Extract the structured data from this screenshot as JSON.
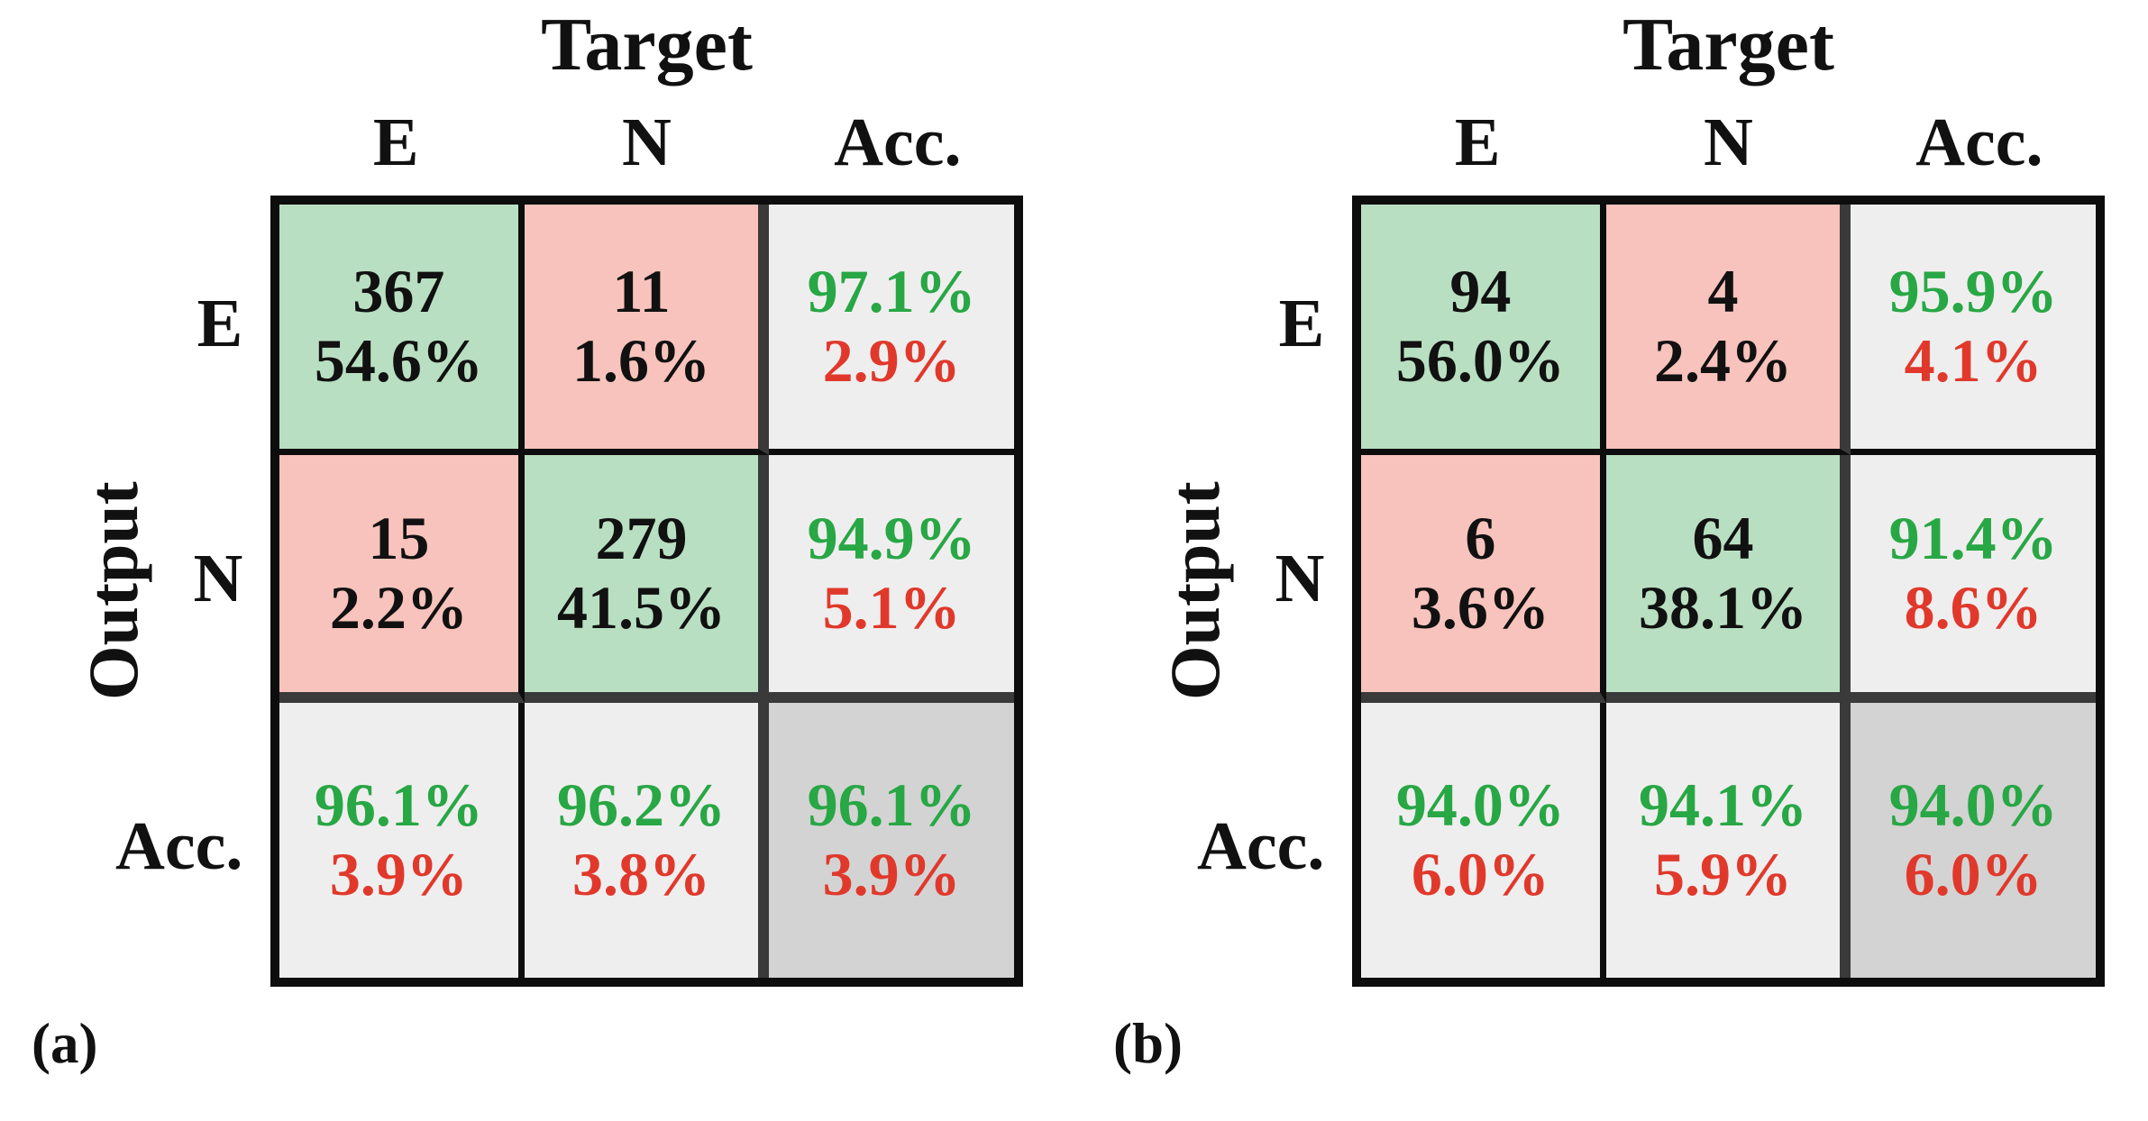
{
  "figure_type": "confusion-matrix-pair",
  "colors": {
    "cell_green": "#b8dfc1",
    "cell_pink": "#f7c3bc",
    "cell_lightgray": "#efeeee",
    "cell_darkgray": "#d3d3d3",
    "text_green": "#28a745",
    "text_red": "#e0392c",
    "text_black": "#111111",
    "border_black": "#0d0d0d",
    "sep_gray": "#3a3a3a"
  },
  "panels": [
    {
      "caption": "(a)",
      "title": "Target",
      "row_axis_label": "Output",
      "col_headers": [
        "E",
        "N",
        "Acc."
      ],
      "row_headers": [
        "E",
        "N",
        "Acc."
      ],
      "cells": [
        [
          {
            "line1": "367",
            "line2": "54.6%"
          },
          {
            "line1": "11",
            "line2": "1.6%"
          },
          {
            "line1": "97.1%",
            "line2": "2.9%"
          }
        ],
        [
          {
            "line1": "15",
            "line2": "2.2%"
          },
          {
            "line1": "279",
            "line2": "41.5%"
          },
          {
            "line1": "94.9%",
            "line2": "5.1%"
          }
        ],
        [
          {
            "line1": "96.1%",
            "line2": "3.9%"
          },
          {
            "line1": "96.2%",
            "line2": "3.8%"
          },
          {
            "line1": "96.1%",
            "line2": "3.9%"
          }
        ]
      ]
    },
    {
      "caption": "(b)",
      "title": "Target",
      "row_axis_label": "Output",
      "col_headers": [
        "E",
        "N",
        "Acc."
      ],
      "row_headers": [
        "E",
        "N",
        "Acc."
      ],
      "cells": [
        [
          {
            "line1": "94",
            "line2": "56.0%"
          },
          {
            "line1": "4",
            "line2": "2.4%"
          },
          {
            "line1": "95.9%",
            "line2": "4.1%"
          }
        ],
        [
          {
            "line1": "6",
            "line2": "3.6%"
          },
          {
            "line1": "64",
            "line2": "38.1%"
          },
          {
            "line1": "91.4%",
            "line2": "8.6%"
          }
        ],
        [
          {
            "line1": "94.0%",
            "line2": "6.0%"
          },
          {
            "line1": "94.1%",
            "line2": "5.9%"
          },
          {
            "line1": "94.0%",
            "line2": "6.0%"
          }
        ]
      ]
    }
  ],
  "chart_data": [
    {
      "type": "heatmap",
      "title": "Target",
      "xlabel": "Target",
      "ylabel": "Output",
      "caption": "(a)",
      "classes": [
        "E",
        "N"
      ],
      "counts": [
        [
          367,
          11
        ],
        [
          15,
          279
        ]
      ],
      "percent_of_total": [
        [
          54.6,
          1.6
        ],
        [
          2.2,
          41.5
        ]
      ],
      "row_accuracy_pct": [
        97.1,
        94.9
      ],
      "row_error_pct": [
        2.9,
        5.1
      ],
      "col_accuracy_pct": [
        96.1,
        96.2
      ],
      "col_error_pct": [
        3.9,
        3.8
      ],
      "overall_accuracy_pct": 96.1,
      "overall_error_pct": 3.9,
      "legend_position": "none",
      "grid": true
    },
    {
      "type": "heatmap",
      "title": "Target",
      "xlabel": "Target",
      "ylabel": "Output",
      "caption": "(b)",
      "classes": [
        "E",
        "N"
      ],
      "counts": [
        [
          94,
          4
        ],
        [
          6,
          64
        ]
      ],
      "percent_of_total": [
        [
          56.0,
          2.4
        ],
        [
          3.6,
          38.1
        ]
      ],
      "row_accuracy_pct": [
        95.9,
        91.4
      ],
      "row_error_pct": [
        4.1,
        8.6
      ],
      "col_accuracy_pct": [
        94.0,
        94.1
      ],
      "col_error_pct": [
        6.0,
        5.9
      ],
      "overall_accuracy_pct": 94.0,
      "overall_error_pct": 6.0,
      "legend_position": "none",
      "grid": true
    }
  ]
}
